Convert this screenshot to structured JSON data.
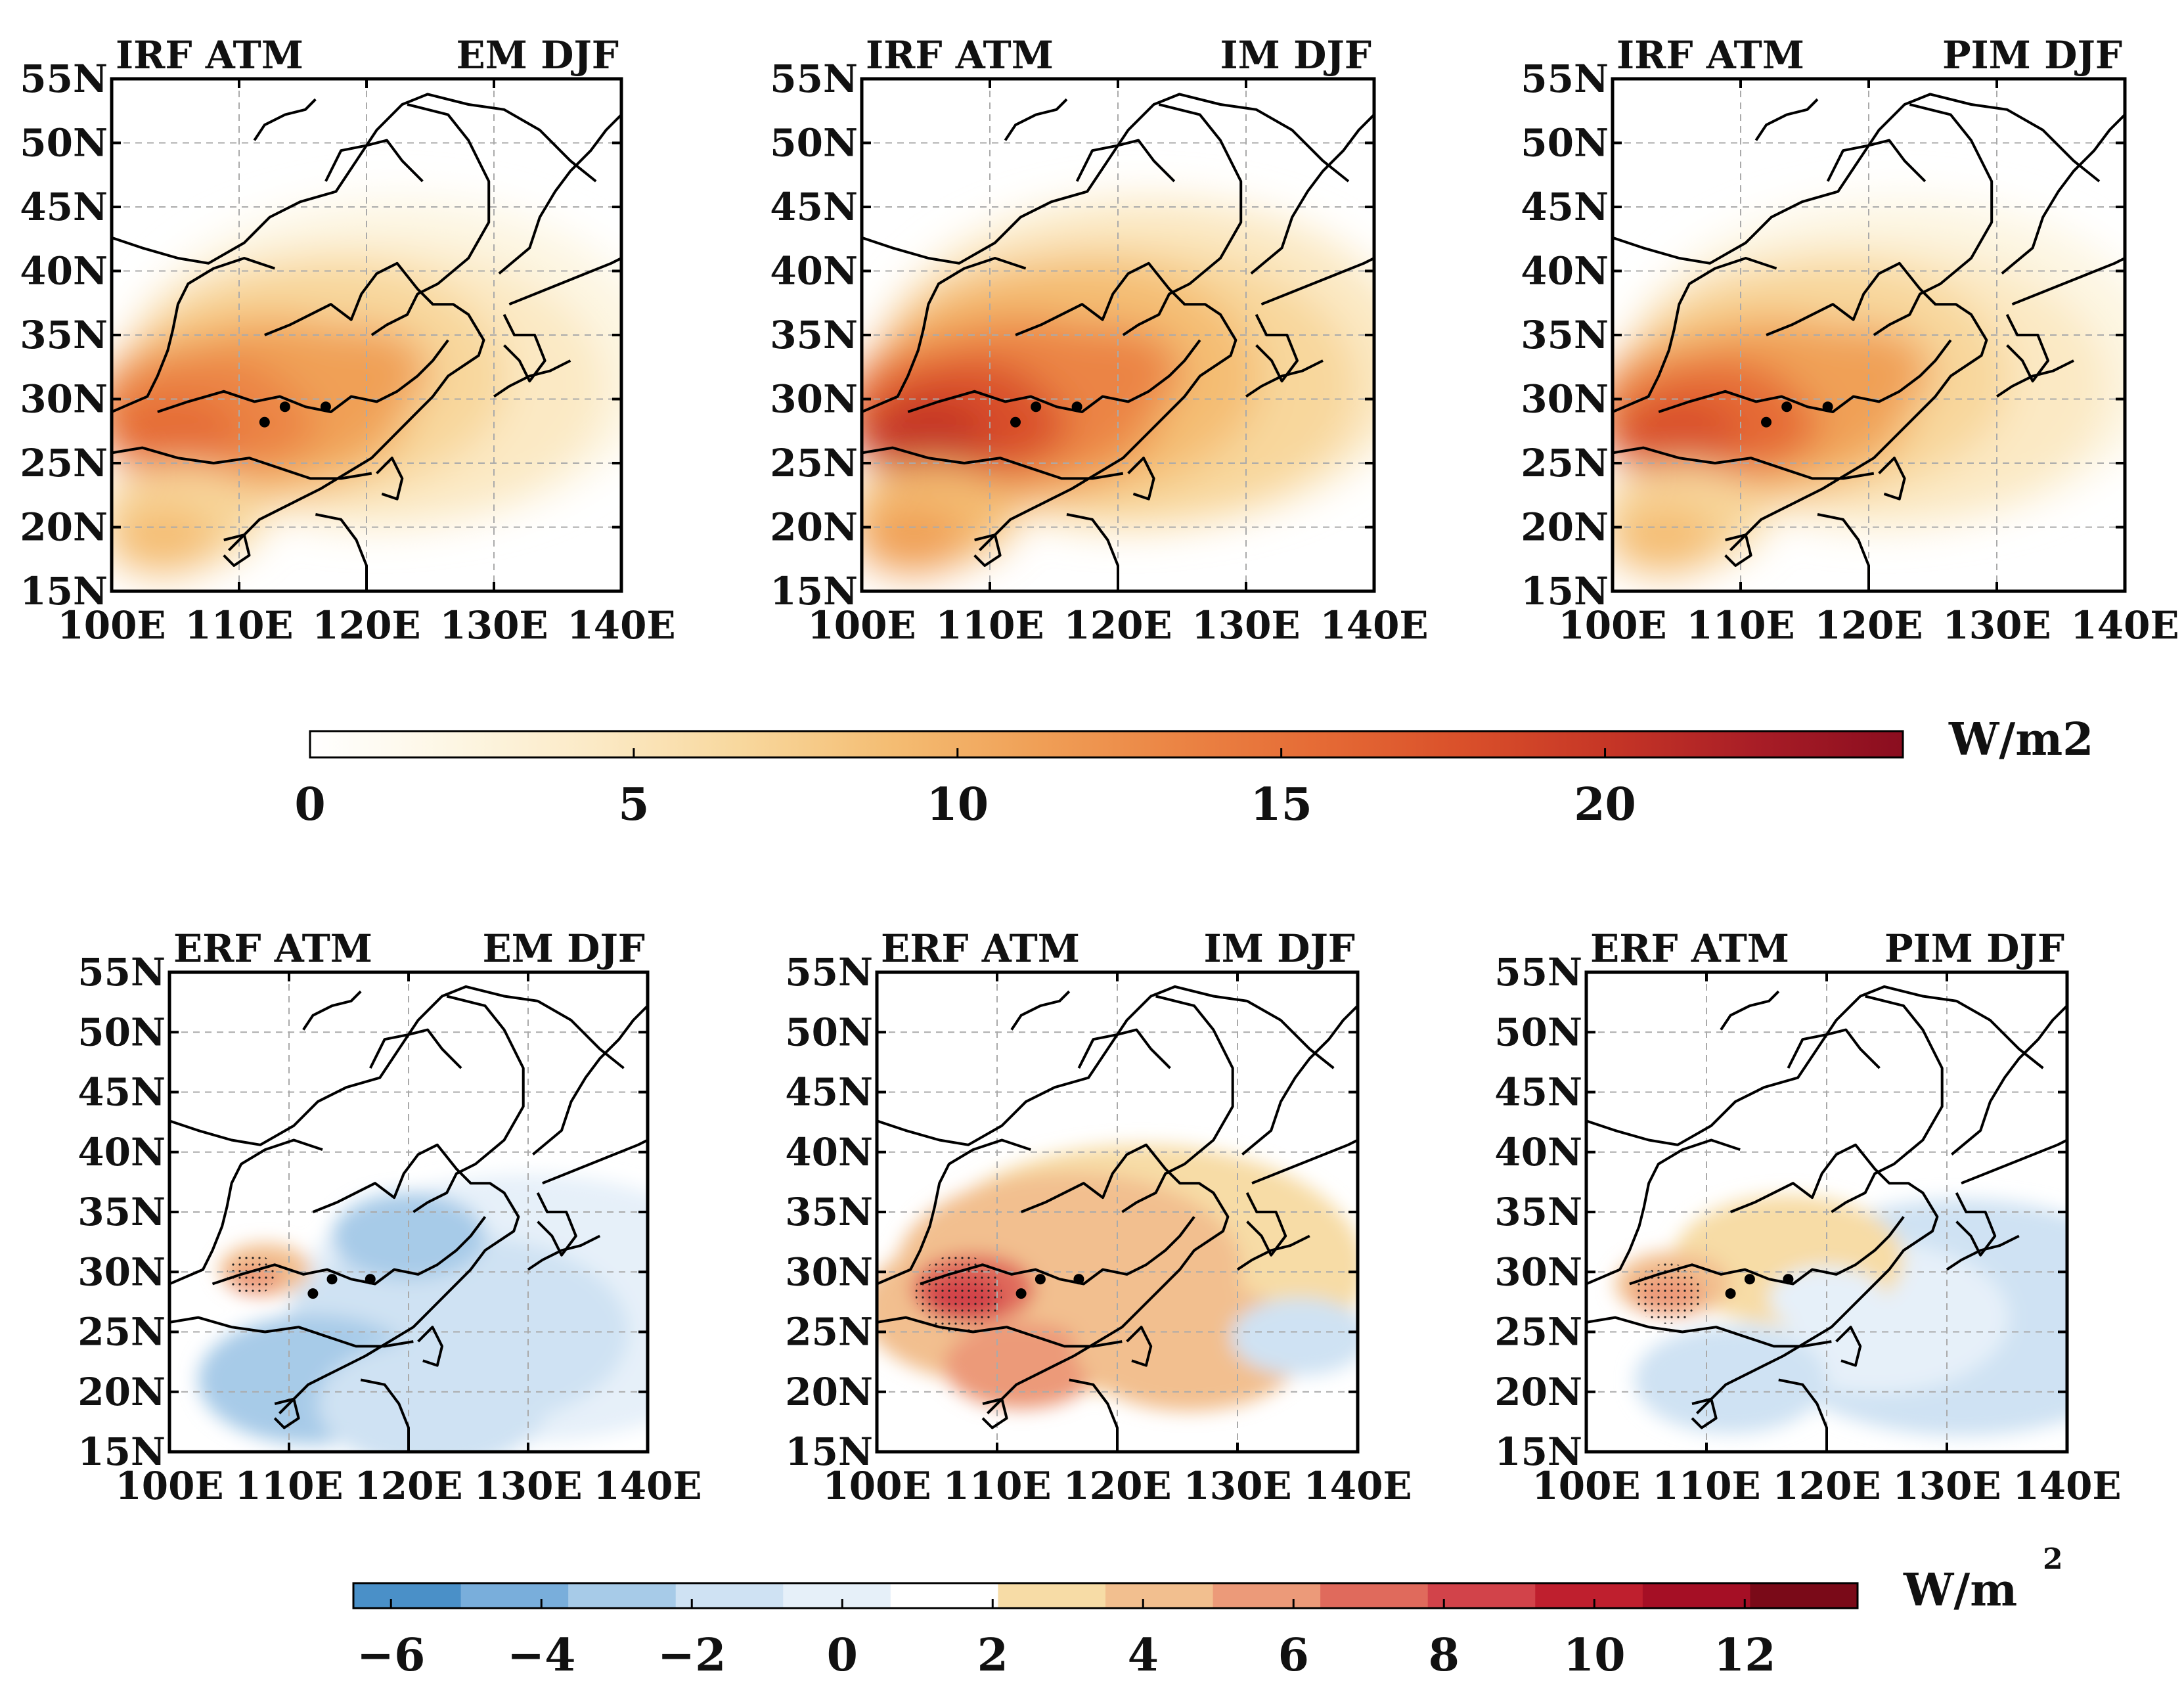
{
  "figure": {
    "panels": [
      {
        "left": "IRF ATM",
        "right": "EM DJF",
        "row": "top",
        "field": "irf",
        "scale": 0.92
      },
      {
        "left": "IRF ATM",
        "right": "IM DJF",
        "row": "top",
        "field": "irf",
        "scale": 1.0
      },
      {
        "left": "IRF ATM",
        "right": "PIM DJF",
        "row": "top",
        "field": "irf",
        "scale": 0.95
      },
      {
        "left": "ERF ATM",
        "right": "EM DJF",
        "row": "bottom",
        "field": "erf_em"
      },
      {
        "left": "ERF ATM",
        "right": "IM DJF",
        "row": "bottom",
        "field": "erf_im"
      },
      {
        "left": "ERF ATM",
        "right": "PIM DJF",
        "row": "bottom",
        "field": "erf_pim"
      }
    ],
    "lat_ticks": [
      "55N",
      "50N",
      "45N",
      "40N",
      "35N",
      "30N",
      "25N",
      "20N",
      "15N"
    ],
    "lon_ticks": [
      "100E",
      "110E",
      "120E",
      "130E",
      "140E"
    ],
    "colorbar_top": {
      "unit": "W/m2",
      "ticks": [
        "0",
        "5",
        "10",
        "15",
        "20"
      ],
      "min": 0,
      "max": 24.6,
      "colors": [
        "#ffffff",
        "#fdf6e3",
        "#fbe9c4",
        "#f8d79c",
        "#f4bd73",
        "#f0a057",
        "#eb8444",
        "#e56a35",
        "#d94f2a",
        "#c53526",
        "#a81d26",
        "#8a0d1f"
      ]
    },
    "colorbar_bottom": {
      "unit": "W/m",
      "unit_sup": "2",
      "ticks": [
        "−6",
        "−4",
        "−2",
        "0",
        "2",
        "4",
        "6",
        "8",
        "10",
        "12"
      ],
      "min": -6.5,
      "max": 13.5,
      "colors": [
        "#4a90c8",
        "#79aedb",
        "#a7cbe8",
        "#cfe2f3",
        "#e6f0f9",
        "#ffffff",
        "#f7dca6",
        "#f2bf8f",
        "#ec9a79",
        "#e06a5c",
        "#d2434a",
        "#bf1f2e",
        "#a50f25",
        "#7a0a18"
      ]
    }
  },
  "chart_data": [
    {
      "type": "heatmap",
      "title": "IRF ATM EM DJF",
      "xlabel": "",
      "ylabel": "",
      "xlim": [
        100,
        140
      ],
      "ylim": [
        15,
        55
      ],
      "colorbar_range": [
        0,
        24.6
      ],
      "unit": "W/m2",
      "peak_value": 17,
      "peak_location": "Sichuan Basin (~105E, 28N)"
    },
    {
      "type": "heatmap",
      "title": "IRF ATM IM DJF",
      "xlabel": "",
      "ylabel": "",
      "xlim": [
        100,
        140
      ],
      "ylim": [
        15,
        55
      ],
      "colorbar_range": [
        0,
        24.6
      ],
      "unit": "W/m2",
      "peak_value": 21,
      "peak_location": "Sichuan Basin (~105E, 28N)"
    },
    {
      "type": "heatmap",
      "title": "IRF ATM PIM DJF",
      "xlabel": "",
      "ylabel": "",
      "xlim": [
        100,
        140
      ],
      "ylim": [
        15,
        55
      ],
      "colorbar_range": [
        0,
        24.6
      ],
      "unit": "W/m2",
      "peak_value": 18,
      "peak_location": "Sichuan Basin (~105E, 28N)"
    },
    {
      "type": "heatmap",
      "title": "ERF ATM EM DJF",
      "xlabel": "",
      "ylabel": "",
      "xlim": [
        100,
        140
      ],
      "ylim": [
        15,
        55
      ],
      "colorbar_range": [
        -6.5,
        13.5
      ],
      "unit": "W/m2",
      "peak_value": 3,
      "min_value": -3
    },
    {
      "type": "heatmap",
      "title": "ERF ATM IM DJF",
      "xlabel": "",
      "ylabel": "",
      "xlim": [
        100,
        140
      ],
      "ylim": [
        15,
        55
      ],
      "colorbar_range": [
        -6.5,
        13.5
      ],
      "unit": "W/m2",
      "peak_value": 8,
      "min_value": -1
    },
    {
      "type": "heatmap",
      "title": "ERF ATM PIM DJF",
      "xlabel": "",
      "ylabel": "",
      "xlim": [
        100,
        140
      ],
      "ylim": [
        15,
        55
      ],
      "colorbar_range": [
        -6.5,
        13.5
      ],
      "unit": "W/m2",
      "peak_value": 5,
      "min_value": -2.5
    }
  ]
}
